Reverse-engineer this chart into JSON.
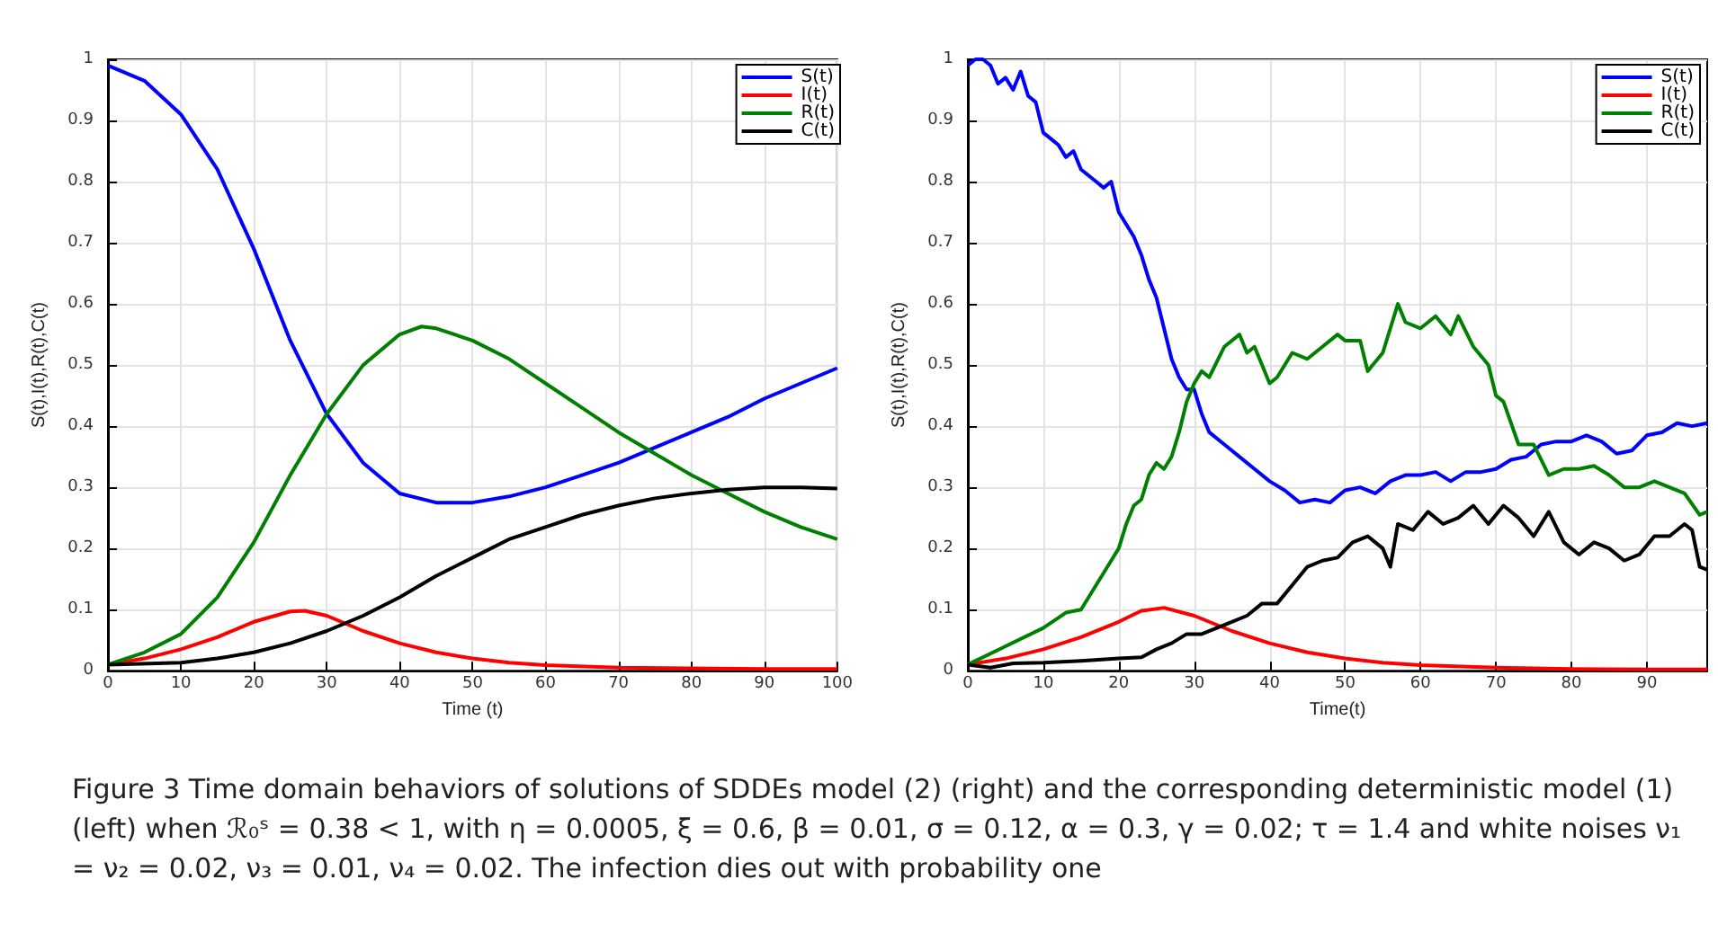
{
  "chart_data": [
    {
      "type": "line",
      "xlabel": "Time (t)",
      "ylabel": "S(t),I(t),R(t),C(t)",
      "xlim": [
        0,
        100
      ],
      "ylim": [
        0,
        1
      ],
      "xticks": [
        0,
        10,
        20,
        30,
        40,
        50,
        60,
        70,
        80,
        90,
        100
      ],
      "yticks": [
        0,
        0.1,
        0.2,
        0.3,
        0.4,
        0.5,
        0.6,
        0.7,
        0.8,
        0.9,
        1
      ],
      "grid": true,
      "legend": "top right",
      "series": [
        {
          "name": "S(t)",
          "color": "#0000ff",
          "x": [
            0,
            5,
            10,
            15,
            20,
            25,
            30,
            35,
            40,
            45,
            50,
            55,
            60,
            65,
            70,
            75,
            80,
            85,
            90,
            95,
            100
          ],
          "values": [
            0.99,
            0.965,
            0.91,
            0.82,
            0.69,
            0.54,
            0.42,
            0.34,
            0.29,
            0.275,
            0.275,
            0.285,
            0.3,
            0.32,
            0.34,
            0.365,
            0.39,
            0.415,
            0.445,
            0.47,
            0.495
          ]
        },
        {
          "name": "I(t)",
          "color": "#ff0000",
          "x": [
            0,
            5,
            10,
            15,
            20,
            25,
            27,
            30,
            35,
            40,
            45,
            50,
            55,
            60,
            70,
            80,
            90,
            100
          ],
          "values": [
            0.01,
            0.02,
            0.035,
            0.055,
            0.08,
            0.097,
            0.098,
            0.09,
            0.065,
            0.045,
            0.03,
            0.02,
            0.013,
            0.009,
            0.005,
            0.004,
            0.003,
            0.003
          ]
        },
        {
          "name": "R(t)",
          "color": "#008000",
          "x": [
            0,
            5,
            10,
            15,
            20,
            25,
            30,
            35,
            40,
            43,
            45,
            50,
            55,
            60,
            65,
            70,
            75,
            80,
            85,
            90,
            95,
            100
          ],
          "values": [
            0.01,
            0.03,
            0.06,
            0.12,
            0.21,
            0.32,
            0.42,
            0.5,
            0.55,
            0.563,
            0.56,
            0.54,
            0.51,
            0.47,
            0.43,
            0.39,
            0.355,
            0.32,
            0.29,
            0.26,
            0.235,
            0.215
          ]
        },
        {
          "name": "C(t)",
          "color": "#000000",
          "x": [
            0,
            10,
            15,
            20,
            25,
            30,
            35,
            40,
            45,
            50,
            55,
            60,
            65,
            70,
            75,
            80,
            85,
            90,
            95,
            100
          ],
          "values": [
            0.01,
            0.013,
            0.02,
            0.03,
            0.045,
            0.065,
            0.09,
            0.12,
            0.155,
            0.185,
            0.215,
            0.235,
            0.255,
            0.27,
            0.282,
            0.29,
            0.296,
            0.3,
            0.3,
            0.298
          ]
        }
      ],
      "annotations": [
        "Figure 3  Time domain behaviors of solutions of SDDEs model (2) (right) and the corresponding deterministic model (1) (left) when ℛ₀ˢ = 0.38 < 1, with η = 0.0005, ξ = 0.6, β = 0.01, σ = 0.12, α = 0.3, γ = 0.02; τ = 1.4 and white noises ν₁ = ν₂ = 0.02, ν₃ = 0.01, ν₄ = 0.02. The infection dies out with probability one"
      ]
    },
    {
      "type": "line",
      "xlabel": "Time(t)",
      "ylabel": "S(t),I(t),R(t),C(t)",
      "xlim": [
        0,
        98
      ],
      "ylim": [
        0,
        1
      ],
      "xticks": [
        0,
        10,
        20,
        30,
        40,
        50,
        60,
        70,
        80,
        90
      ],
      "yticks": [
        0,
        0.1,
        0.2,
        0.3,
        0.4,
        0.5,
        0.6,
        0.7,
        0.8,
        0.9,
        1
      ],
      "grid": true,
      "legend": "top right",
      "series": [
        {
          "name": "S(t)",
          "color": "#0000ff",
          "x": [
            0,
            1,
            2,
            3,
            4,
            5,
            6,
            7,
            8,
            9,
            10,
            11,
            12,
            13,
            14,
            15,
            16,
            17,
            18,
            19,
            20,
            21,
            22,
            23,
            24,
            25,
            26,
            27,
            28,
            29,
            30,
            31,
            32,
            34,
            36,
            38,
            40,
            42,
            44,
            46,
            48,
            50,
            52,
            54,
            56,
            58,
            60,
            62,
            64,
            66,
            68,
            70,
            72,
            74,
            76,
            78,
            80,
            82,
            84,
            86,
            88,
            90,
            92,
            94,
            96,
            98
          ],
          "values": [
            0.99,
            1.0,
            1.0,
            0.99,
            0.96,
            0.97,
            0.95,
            0.98,
            0.94,
            0.93,
            0.88,
            0.87,
            0.86,
            0.84,
            0.85,
            0.82,
            0.81,
            0.8,
            0.79,
            0.8,
            0.75,
            0.73,
            0.71,
            0.68,
            0.64,
            0.61,
            0.56,
            0.51,
            0.48,
            0.46,
            0.46,
            0.42,
            0.39,
            0.37,
            0.35,
            0.33,
            0.31,
            0.295,
            0.275,
            0.28,
            0.275,
            0.295,
            0.3,
            0.29,
            0.31,
            0.32,
            0.32,
            0.325,
            0.31,
            0.325,
            0.325,
            0.33,
            0.345,
            0.35,
            0.37,
            0.375,
            0.375,
            0.385,
            0.375,
            0.355,
            0.36,
            0.385,
            0.39,
            0.405,
            0.4,
            0.405
          ]
        },
        {
          "name": "I(t)",
          "color": "#ff0000",
          "x": [
            0,
            5,
            10,
            15,
            20,
            23,
            26,
            30,
            35,
            40,
            45,
            50,
            55,
            60,
            70,
            80,
            90,
            98
          ],
          "values": [
            0.01,
            0.02,
            0.035,
            0.055,
            0.08,
            0.098,
            0.103,
            0.09,
            0.065,
            0.045,
            0.03,
            0.02,
            0.013,
            0.009,
            0.005,
            0.003,
            0.002,
            0.002
          ]
        },
        {
          "name": "R(t)",
          "color": "#008000",
          "x": [
            0,
            5,
            10,
            13,
            15,
            17,
            19,
            20,
            21,
            22,
            23,
            24,
            25,
            26,
            27,
            28,
            29,
            30,
            31,
            32,
            34,
            36,
            37,
            38,
            40,
            41,
            43,
            45,
            47,
            49,
            50,
            52,
            53,
            55,
            57,
            58,
            60,
            62,
            64,
            65,
            67,
            69,
            70,
            71,
            73,
            75,
            77,
            79,
            81,
            83,
            85,
            87,
            89,
            91,
            93,
            95,
            97,
            98
          ],
          "values": [
            0.01,
            0.04,
            0.07,
            0.095,
            0.1,
            0.14,
            0.18,
            0.2,
            0.24,
            0.27,
            0.28,
            0.32,
            0.34,
            0.33,
            0.35,
            0.39,
            0.44,
            0.47,
            0.49,
            0.48,
            0.53,
            0.55,
            0.52,
            0.53,
            0.47,
            0.48,
            0.52,
            0.51,
            0.53,
            0.55,
            0.54,
            0.54,
            0.49,
            0.52,
            0.6,
            0.57,
            0.56,
            0.58,
            0.55,
            0.58,
            0.53,
            0.5,
            0.45,
            0.44,
            0.37,
            0.37,
            0.32,
            0.33,
            0.33,
            0.335,
            0.32,
            0.3,
            0.3,
            0.31,
            0.3,
            0.29,
            0.255,
            0.26
          ]
        },
        {
          "name": "C(t)",
          "color": "#000000",
          "x": [
            0,
            3,
            6,
            10,
            15,
            20,
            23,
            25,
            27,
            29,
            31,
            33,
            35,
            37,
            39,
            41,
            43,
            45,
            47,
            49,
            51,
            53,
            55,
            56,
            57,
            59,
            61,
            63,
            65,
            67,
            69,
            71,
            73,
            75,
            77,
            79,
            81,
            83,
            85,
            87,
            89,
            91,
            93,
            95,
            96,
            97,
            98
          ],
          "values": [
            0.01,
            0.005,
            0.012,
            0.013,
            0.016,
            0.02,
            0.022,
            0.035,
            0.045,
            0.06,
            0.06,
            0.07,
            0.08,
            0.09,
            0.11,
            0.11,
            0.14,
            0.17,
            0.18,
            0.185,
            0.21,
            0.22,
            0.2,
            0.17,
            0.24,
            0.23,
            0.26,
            0.24,
            0.25,
            0.27,
            0.24,
            0.27,
            0.25,
            0.22,
            0.26,
            0.21,
            0.19,
            0.21,
            0.2,
            0.18,
            0.19,
            0.22,
            0.22,
            0.24,
            0.23,
            0.17,
            0.165
          ]
        }
      ]
    }
  ]
}
